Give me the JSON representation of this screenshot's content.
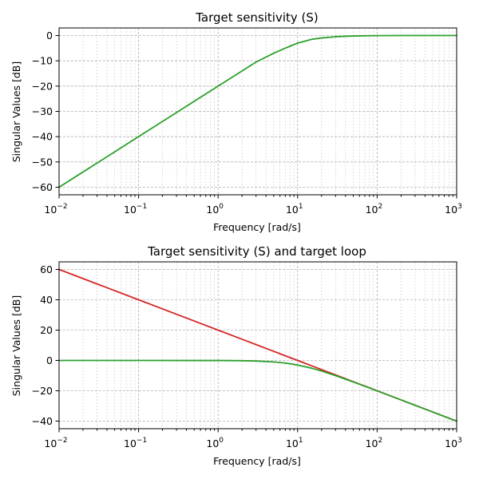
{
  "chart_data": [
    {
      "type": "line",
      "title": "Target sensitivity (S)",
      "xlabel": "Frequency [rad/s]",
      "ylabel": "Singular Values [dB]",
      "xscale": "log",
      "xlim": [
        0.01,
        1000
      ],
      "ylim": [
        -63,
        3
      ],
      "xticks": [
        {
          "base": "10",
          "exp": "−2"
        },
        {
          "base": "10",
          "exp": "−1"
        },
        {
          "base": "10",
          "exp": "0"
        },
        {
          "base": "10",
          "exp": "1"
        },
        {
          "base": "10",
          "exp": "2"
        },
        {
          "base": "10",
          "exp": "3"
        }
      ],
      "yticks": [
        "0",
        "−10",
        "−20",
        "−30",
        "−40",
        "−50",
        "−60"
      ],
      "grid": true,
      "x": [
        0.01,
        0.02,
        0.05,
        0.1,
        0.2,
        0.5,
        1,
        2,
        3,
        5,
        7,
        10,
        15,
        20,
        30,
        50,
        100,
        200,
        500,
        1000
      ],
      "series": [
        {
          "color": "#2ca02c",
          "values": [
            -60,
            -53.98,
            -46.02,
            -40,
            -33.98,
            -26.02,
            -20,
            -14.01,
            -10.5,
            -7.0,
            -5.0,
            -3.0,
            -1.5,
            -0.97,
            -0.46,
            -0.17,
            -0.04,
            -0.01,
            0,
            0
          ]
        }
      ]
    },
    {
      "type": "line",
      "title": "Target sensitivity (S) and target loop",
      "xlabel": "Frequency [rad/s]",
      "ylabel": "Singular Values [dB]",
      "xscale": "log",
      "xlim": [
        0.01,
        1000
      ],
      "ylim": [
        -45,
        65
      ],
      "xticks": [
        {
          "base": "10",
          "exp": "−2"
        },
        {
          "base": "10",
          "exp": "−1"
        },
        {
          "base": "10",
          "exp": "0"
        },
        {
          "base": "10",
          "exp": "1"
        },
        {
          "base": "10",
          "exp": "2"
        },
        {
          "base": "10",
          "exp": "3"
        }
      ],
      "yticks": [
        "60",
        "40",
        "20",
        "0",
        "−20",
        "−40"
      ],
      "grid": true,
      "x": [
        0.01,
        0.1,
        1,
        2,
        3,
        5,
        7,
        10,
        15,
        20,
        30,
        50,
        70,
        100,
        200,
        500,
        1000
      ],
      "series": [
        {
          "color": "#d62728",
          "values": [
            60,
            40,
            20,
            13.98,
            10.46,
            6.02,
            3.1,
            0,
            -3.52,
            -6.02,
            -9.54,
            -13.98,
            -16.9,
            -20,
            -26.02,
            -33.98,
            -40
          ]
        },
        {
          "color": "#2ca02c",
          "values": [
            0,
            0,
            -0.04,
            -0.17,
            -0.37,
            -0.97,
            -1.7,
            -3.0,
            -5.1,
            -7.0,
            -10.0,
            -14.15,
            -16.98,
            -20.04,
            -26.03,
            -33.98,
            -40
          ]
        }
      ]
    }
  ]
}
